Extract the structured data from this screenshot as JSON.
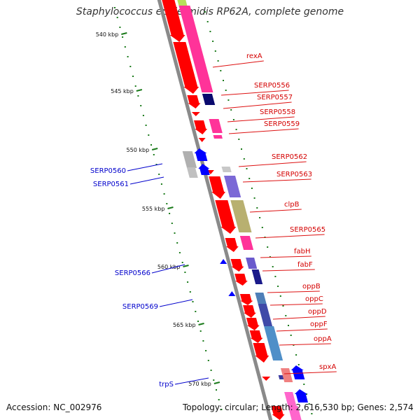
{
  "title": "Staphylococcus epidermidis RP62A, complete genome",
  "footer": {
    "accession": "Accession: NC_002976",
    "summary": "Topology: circular; Length: 2,616,530 bp; Genes: 2,574"
  },
  "colors": {
    "backbone": "#8a8a8a",
    "cds": "#ff0000",
    "forward_label": "#d40000",
    "reverse_label": "#0000cc",
    "reverse_gene": "#0000ff",
    "tick": "#1a7a1a"
  },
  "ticks": [
    {
      "label": "540 kbp"
    },
    {
      "label": "545 kbp"
    },
    {
      "label": "550 kbp"
    },
    {
      "label": "555 kbp"
    },
    {
      "label": "560 kbp"
    },
    {
      "label": "565 kbp"
    },
    {
      "label": "570 kbp"
    }
  ],
  "forward_genes": [
    {
      "name": "rexA"
    },
    {
      "name": "SERP0556"
    },
    {
      "name": "SERP0557"
    },
    {
      "name": "SERP0558"
    },
    {
      "name": "SERP0559"
    },
    {
      "name": "SERP0562"
    },
    {
      "name": "SERP0563"
    },
    {
      "name": "clpB"
    },
    {
      "name": "SERP0565"
    },
    {
      "name": "fabH"
    },
    {
      "name": "fabF"
    },
    {
      "name": "oppB"
    },
    {
      "name": "oppC"
    },
    {
      "name": "oppD"
    },
    {
      "name": "oppF"
    },
    {
      "name": "oppA"
    },
    {
      "name": "spxA"
    }
  ],
  "reverse_genes": [
    {
      "name": "SERP0560"
    },
    {
      "name": "SERP0561"
    },
    {
      "name": "SERP0566"
    },
    {
      "name": "SERP0569"
    },
    {
      "name": "trpS"
    }
  ]
}
